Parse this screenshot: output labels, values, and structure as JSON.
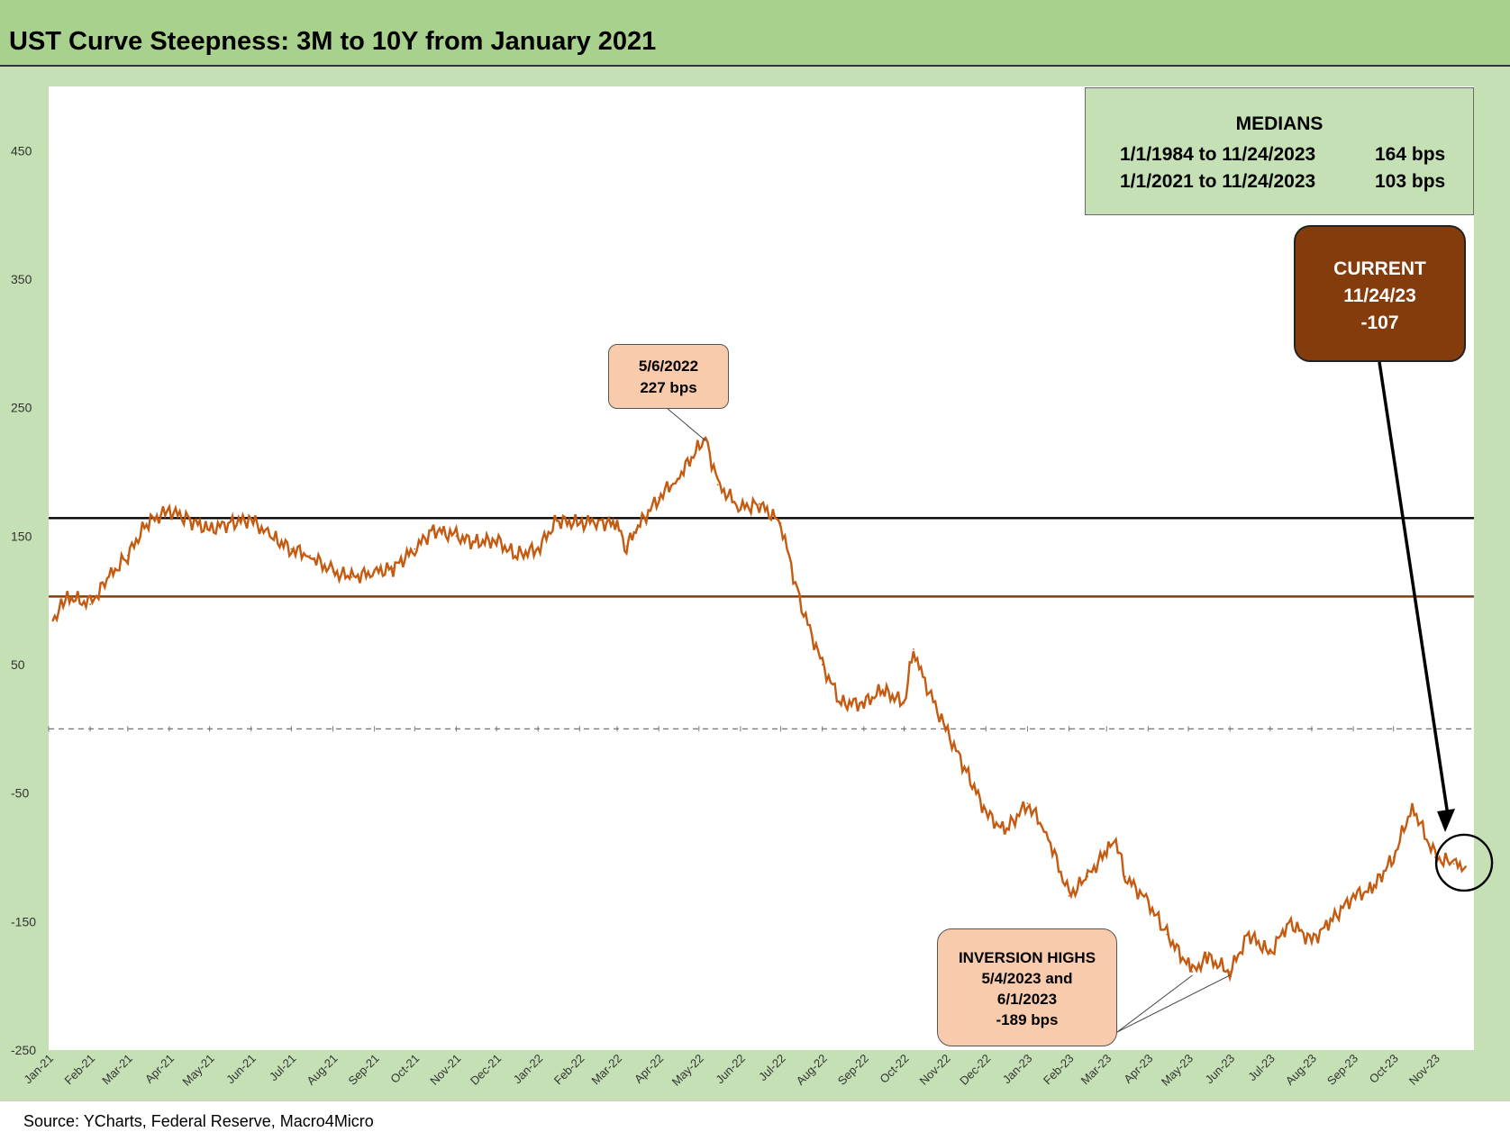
{
  "title": "UST Curve Steepness: 3M to 10Y from January 2021",
  "source": "Source: YCharts, Federal Reserve, Macro4Micro",
  "medians": {
    "title": "MEDIANS",
    "rows": [
      {
        "range": "1/1/1984 to 11/24/2023",
        "value": "164 bps"
      },
      {
        "range": "1/1/2021 to 11/24/2023",
        "value": "103 bps"
      }
    ]
  },
  "current": {
    "line1": "CURRENT",
    "line2": "11/24/23",
    "line3": "-107"
  },
  "peak_label": {
    "line1": "5/6/2022",
    "line2": "227 bps"
  },
  "inversion_label": {
    "line1": "INVERSION HIGHS",
    "line2": "5/4/2023 and",
    "line3": "6/1/2023",
    "line4": "-189 bps"
  },
  "colors": {
    "series": "#c55a11",
    "median_1984": "#000000",
    "median_2021": "#843c0c",
    "current_box": "#843c0c",
    "callout": "#f8cbad",
    "frame": "#c5e0b4",
    "title_bar": "#a9d18e"
  },
  "chart_data": {
    "type": "line",
    "title": "UST Curve Steepness: 3M to 10Y from January 2021",
    "ylim": [
      -250,
      500
    ],
    "yticks": [
      450,
      350,
      250,
      150,
      50,
      -50,
      -150,
      -250
    ],
    "xlim": [
      "2021-01-01",
      "2023-11-30"
    ],
    "xticks": [
      "Jan-21",
      "Feb-21",
      "Mar-21",
      "Apr-21",
      "May-21",
      "Jun-21",
      "Jul-21",
      "Aug-21",
      "Sep-21",
      "Oct-21",
      "Nov-21",
      "Dec-21",
      "Jan-22",
      "Feb-22",
      "Mar-22",
      "Apr-22",
      "May-22",
      "Jun-22",
      "Jul-22",
      "Aug-22",
      "Sep-22",
      "Oct-22",
      "Nov-22",
      "Dec-22",
      "Jan-23",
      "Feb-23",
      "Mar-23",
      "Apr-23",
      "May-23",
      "Jun-23",
      "Jul-23",
      "Aug-23",
      "Sep-23",
      "Oct-23",
      "Nov-23"
    ],
    "series": [
      {
        "values": [
          [
            "2021-01-04",
            84
          ],
          [
            "2021-01-15",
            103
          ],
          [
            "2021-02-01",
            97
          ],
          [
            "2021-02-15",
            118
          ],
          [
            "2021-03-01",
            135
          ],
          [
            "2021-03-15",
            160
          ],
          [
            "2021-04-01",
            170
          ],
          [
            "2021-04-15",
            163
          ],
          [
            "2021-05-01",
            155
          ],
          [
            "2021-05-15",
            160
          ],
          [
            "2021-06-01",
            163
          ],
          [
            "2021-06-15",
            150
          ],
          [
            "2021-07-01",
            140
          ],
          [
            "2021-07-15",
            135
          ],
          [
            "2021-08-01",
            122
          ],
          [
            "2021-08-15",
            118
          ],
          [
            "2021-09-01",
            122
          ],
          [
            "2021-09-15",
            125
          ],
          [
            "2021-10-01",
            140
          ],
          [
            "2021-10-15",
            155
          ],
          [
            "2021-11-01",
            150
          ],
          [
            "2021-11-15",
            145
          ],
          [
            "2021-12-01",
            147
          ],
          [
            "2021-12-15",
            135
          ],
          [
            "2022-01-01",
            140
          ],
          [
            "2022-01-15",
            162
          ],
          [
            "2022-02-01",
            160
          ],
          [
            "2022-02-15",
            162
          ],
          [
            "2022-03-01",
            158
          ],
          [
            "2022-03-08",
            142
          ],
          [
            "2022-03-15",
            155
          ],
          [
            "2022-04-01",
            180
          ],
          [
            "2022-04-15",
            195
          ],
          [
            "2022-05-06",
            227
          ],
          [
            "2022-05-15",
            190
          ],
          [
            "2022-06-01",
            172
          ],
          [
            "2022-06-15",
            175
          ],
          [
            "2022-07-01",
            160
          ],
          [
            "2022-07-15",
            100
          ],
          [
            "2022-08-01",
            50
          ],
          [
            "2022-08-15",
            20
          ],
          [
            "2022-09-01",
            20
          ],
          [
            "2022-09-15",
            30
          ],
          [
            "2022-10-01",
            20
          ],
          [
            "2022-10-08",
            62
          ],
          [
            "2022-10-15",
            40
          ],
          [
            "2022-11-01",
            0
          ],
          [
            "2022-11-15",
            -30
          ],
          [
            "2022-12-01",
            -65
          ],
          [
            "2022-12-15",
            -80
          ],
          [
            "2023-01-01",
            -58
          ],
          [
            "2023-01-15",
            -80
          ],
          [
            "2023-02-01",
            -130
          ],
          [
            "2023-02-15",
            -115
          ],
          [
            "2023-03-01",
            -95
          ],
          [
            "2023-03-08",
            -87
          ],
          [
            "2023-03-15",
            -115
          ],
          [
            "2023-04-01",
            -135
          ],
          [
            "2023-04-15",
            -160
          ],
          [
            "2023-05-04",
            -189
          ],
          [
            "2023-05-15",
            -178
          ],
          [
            "2023-06-01",
            -189
          ],
          [
            "2023-06-15",
            -160
          ],
          [
            "2023-07-01",
            -175
          ],
          [
            "2023-07-15",
            -150
          ],
          [
            "2023-08-01",
            -165
          ],
          [
            "2023-08-15",
            -150
          ],
          [
            "2023-09-01",
            -130
          ],
          [
            "2023-09-15",
            -125
          ],
          [
            "2023-10-01",
            -100
          ],
          [
            "2023-10-15",
            -60
          ],
          [
            "2023-11-01",
            -100
          ],
          [
            "2023-11-15",
            -105
          ],
          [
            "2023-11-24",
            -107
          ]
        ]
      }
    ],
    "hlines": [
      {
        "label": "1/1/1984 to 11/24/2023",
        "value": 164
      },
      {
        "label": "1/1/2021 to 11/24/2023",
        "value": 103
      },
      {
        "label": "zero",
        "value": 0
      }
    ],
    "annotations": [
      {
        "date": "2022-05-06",
        "value": 227,
        "text": "5/6/2022 227 bps"
      },
      {
        "date": "2023-05-04",
        "value": -189,
        "text": "INVERSION HIGHS"
      },
      {
        "date": "2023-06-01",
        "value": -189,
        "text": "INVERSION HIGHS"
      },
      {
        "date": "2023-11-24",
        "value": -107,
        "text": "CURRENT 11/24/23 -107"
      }
    ],
    "grid": false
  }
}
